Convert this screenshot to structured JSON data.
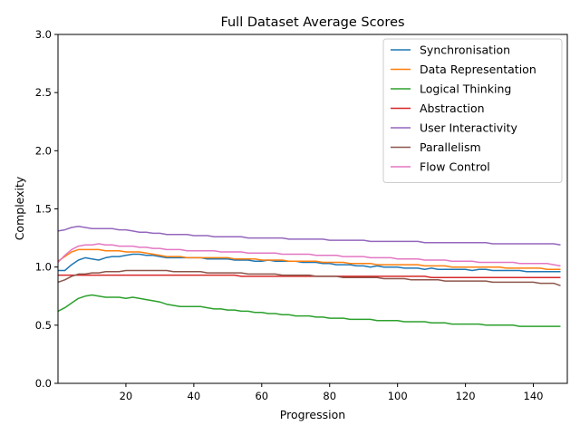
{
  "chart_data": {
    "type": "line",
    "title": "Full Dataset Average Scores",
    "xlabel": "Progression",
    "ylabel": "Complexity",
    "xlim": [
      0,
      150
    ],
    "ylim": [
      0.0,
      3.0
    ],
    "xticks": [
      20,
      40,
      60,
      80,
      100,
      120,
      140
    ],
    "yticks": [
      0.0,
      0.5,
      1.0,
      1.5,
      2.0,
      2.5,
      3.0
    ],
    "grid": false,
    "legend_position": "upper right",
    "x": [
      0,
      2,
      4,
      6,
      8,
      10,
      12,
      14,
      16,
      18,
      20,
      22,
      24,
      26,
      28,
      30,
      32,
      34,
      36,
      38,
      40,
      42,
      44,
      46,
      48,
      50,
      52,
      54,
      56,
      58,
      60,
      62,
      64,
      66,
      68,
      70,
      72,
      74,
      76,
      78,
      80,
      82,
      84,
      86,
      88,
      90,
      92,
      94,
      96,
      98,
      100,
      102,
      104,
      106,
      108,
      110,
      112,
      114,
      116,
      118,
      120,
      122,
      124,
      126,
      128,
      130,
      132,
      134,
      136,
      138,
      140,
      142,
      144,
      146,
      148
    ],
    "series": [
      {
        "name": "Synchronisation",
        "color": "#1f77b4",
        "values": [
          0.97,
          0.97,
          1.02,
          1.06,
          1.08,
          1.07,
          1.06,
          1.08,
          1.09,
          1.09,
          1.1,
          1.11,
          1.11,
          1.1,
          1.1,
          1.09,
          1.08,
          1.08,
          1.08,
          1.08,
          1.08,
          1.08,
          1.07,
          1.07,
          1.07,
          1.07,
          1.06,
          1.06,
          1.06,
          1.05,
          1.05,
          1.06,
          1.05,
          1.05,
          1.05,
          1.05,
          1.04,
          1.04,
          1.04,
          1.03,
          1.03,
          1.02,
          1.02,
          1.02,
          1.01,
          1.01,
          1.0,
          1.01,
          1.0,
          1.0,
          1.0,
          0.99,
          0.99,
          0.99,
          0.98,
          0.99,
          0.98,
          0.98,
          0.98,
          0.98,
          0.98,
          0.97,
          0.98,
          0.98,
          0.97,
          0.97,
          0.97,
          0.97,
          0.97,
          0.96,
          0.96,
          0.96,
          0.96,
          0.96,
          0.96
        ]
      },
      {
        "name": "Data Representation",
        "color": "#ff7f0e",
        "values": [
          1.05,
          1.09,
          1.13,
          1.15,
          1.15,
          1.15,
          1.15,
          1.14,
          1.14,
          1.14,
          1.13,
          1.13,
          1.13,
          1.12,
          1.11,
          1.1,
          1.09,
          1.09,
          1.09,
          1.08,
          1.08,
          1.08,
          1.08,
          1.08,
          1.08,
          1.08,
          1.07,
          1.07,
          1.07,
          1.07,
          1.06,
          1.06,
          1.06,
          1.06,
          1.05,
          1.05,
          1.05,
          1.05,
          1.05,
          1.04,
          1.04,
          1.04,
          1.04,
          1.03,
          1.03,
          1.03,
          1.03,
          1.02,
          1.02,
          1.02,
          1.02,
          1.02,
          1.02,
          1.02,
          1.01,
          1.01,
          1.01,
          1.01,
          1.0,
          1.0,
          1.0,
          1.0,
          1.0,
          1.0,
          1.0,
          1.0,
          0.99,
          0.99,
          0.99,
          0.99,
          0.99,
          0.99,
          0.98,
          0.98,
          0.98
        ]
      },
      {
        "name": "Logical Thinking",
        "color": "#2ca02c",
        "values": [
          0.62,
          0.65,
          0.69,
          0.73,
          0.75,
          0.76,
          0.75,
          0.74,
          0.74,
          0.74,
          0.73,
          0.74,
          0.73,
          0.72,
          0.71,
          0.7,
          0.68,
          0.67,
          0.66,
          0.66,
          0.66,
          0.66,
          0.65,
          0.64,
          0.64,
          0.63,
          0.63,
          0.62,
          0.62,
          0.61,
          0.61,
          0.6,
          0.6,
          0.59,
          0.59,
          0.58,
          0.58,
          0.58,
          0.57,
          0.57,
          0.56,
          0.56,
          0.56,
          0.55,
          0.55,
          0.55,
          0.55,
          0.54,
          0.54,
          0.54,
          0.54,
          0.53,
          0.53,
          0.53,
          0.53,
          0.52,
          0.52,
          0.52,
          0.51,
          0.51,
          0.51,
          0.51,
          0.51,
          0.5,
          0.5,
          0.5,
          0.5,
          0.5,
          0.49,
          0.49,
          0.49,
          0.49,
          0.49,
          0.49,
          0.49
        ]
      },
      {
        "name": "Abstraction",
        "color": "#d62728",
        "values": [
          0.93,
          0.93,
          0.93,
          0.93,
          0.93,
          0.93,
          0.93,
          0.93,
          0.93,
          0.93,
          0.93,
          0.93,
          0.93,
          0.93,
          0.93,
          0.93,
          0.93,
          0.93,
          0.93,
          0.93,
          0.93,
          0.93,
          0.93,
          0.93,
          0.93,
          0.93,
          0.93,
          0.92,
          0.92,
          0.92,
          0.92,
          0.92,
          0.92,
          0.92,
          0.92,
          0.92,
          0.92,
          0.92,
          0.92,
          0.92,
          0.92,
          0.92,
          0.92,
          0.92,
          0.92,
          0.92,
          0.92,
          0.92,
          0.92,
          0.92,
          0.92,
          0.92,
          0.92,
          0.92,
          0.92,
          0.91,
          0.91,
          0.91,
          0.91,
          0.91,
          0.91,
          0.91,
          0.91,
          0.91,
          0.91,
          0.91,
          0.91,
          0.91,
          0.91,
          0.91,
          0.91,
          0.91,
          0.91,
          0.91,
          0.91
        ]
      },
      {
        "name": "User Interactivity",
        "color": "#9467bd",
        "values": [
          1.31,
          1.32,
          1.34,
          1.35,
          1.34,
          1.33,
          1.33,
          1.33,
          1.33,
          1.32,
          1.32,
          1.31,
          1.3,
          1.3,
          1.29,
          1.29,
          1.28,
          1.28,
          1.28,
          1.28,
          1.27,
          1.27,
          1.27,
          1.26,
          1.26,
          1.26,
          1.26,
          1.26,
          1.25,
          1.25,
          1.25,
          1.25,
          1.25,
          1.25,
          1.24,
          1.24,
          1.24,
          1.24,
          1.24,
          1.24,
          1.23,
          1.23,
          1.23,
          1.23,
          1.23,
          1.23,
          1.22,
          1.22,
          1.22,
          1.22,
          1.22,
          1.22,
          1.22,
          1.22,
          1.21,
          1.21,
          1.21,
          1.21,
          1.21,
          1.21,
          1.21,
          1.21,
          1.21,
          1.21,
          1.2,
          1.2,
          1.2,
          1.2,
          1.2,
          1.2,
          1.2,
          1.2,
          1.2,
          1.2,
          1.19
        ]
      },
      {
        "name": "Parallelism",
        "color": "#8c564b",
        "values": [
          0.87,
          0.89,
          0.92,
          0.94,
          0.94,
          0.95,
          0.95,
          0.96,
          0.96,
          0.96,
          0.97,
          0.97,
          0.97,
          0.97,
          0.97,
          0.97,
          0.97,
          0.96,
          0.96,
          0.96,
          0.96,
          0.96,
          0.95,
          0.95,
          0.95,
          0.95,
          0.95,
          0.95,
          0.94,
          0.94,
          0.94,
          0.94,
          0.94,
          0.93,
          0.93,
          0.93,
          0.93,
          0.93,
          0.92,
          0.92,
          0.92,
          0.92,
          0.91,
          0.91,
          0.91,
          0.91,
          0.91,
          0.91,
          0.9,
          0.9,
          0.9,
          0.9,
          0.89,
          0.89,
          0.89,
          0.89,
          0.89,
          0.88,
          0.88,
          0.88,
          0.88,
          0.88,
          0.88,
          0.88,
          0.87,
          0.87,
          0.87,
          0.87,
          0.87,
          0.87,
          0.87,
          0.86,
          0.86,
          0.86,
          0.84
        ]
      },
      {
        "name": "Flow Control",
        "color": "#e377c2",
        "values": [
          1.04,
          1.1,
          1.15,
          1.18,
          1.19,
          1.19,
          1.2,
          1.19,
          1.19,
          1.18,
          1.18,
          1.18,
          1.17,
          1.17,
          1.16,
          1.16,
          1.15,
          1.15,
          1.15,
          1.14,
          1.14,
          1.14,
          1.14,
          1.14,
          1.13,
          1.13,
          1.13,
          1.13,
          1.12,
          1.12,
          1.12,
          1.12,
          1.12,
          1.11,
          1.11,
          1.11,
          1.11,
          1.11,
          1.1,
          1.1,
          1.1,
          1.1,
          1.09,
          1.09,
          1.09,
          1.09,
          1.08,
          1.08,
          1.08,
          1.08,
          1.07,
          1.07,
          1.07,
          1.07,
          1.06,
          1.06,
          1.06,
          1.06,
          1.05,
          1.05,
          1.05,
          1.05,
          1.04,
          1.04,
          1.04,
          1.04,
          1.04,
          1.04,
          1.03,
          1.03,
          1.03,
          1.03,
          1.03,
          1.02,
          1.01
        ]
      }
    ]
  }
}
